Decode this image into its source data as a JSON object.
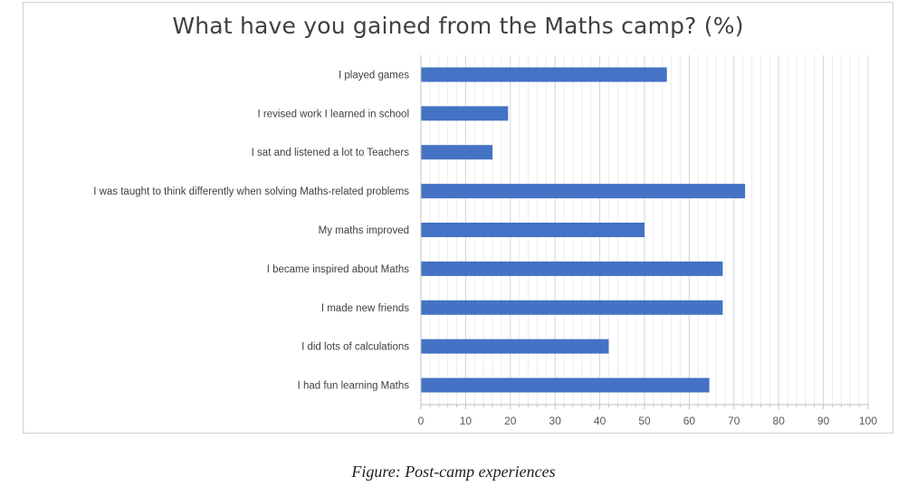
{
  "chart_data": {
    "type": "bar",
    "orientation": "horizontal",
    "title": "What have you gained from the Maths camp? (%)",
    "categories": [
      "I played games",
      "I revised work I learned in school",
      "I sat and listened a lot to Teachers",
      "I was taught to think differently when solving Maths-related problems",
      "My maths improved",
      "I became inspired about Maths",
      "I made new friends",
      "I did lots of calculations",
      "I had fun learning Maths"
    ],
    "values": [
      55,
      19.5,
      16,
      72.5,
      50,
      67.5,
      67.5,
      42,
      64.5
    ],
    "xlim": [
      0,
      100
    ],
    "xticks": [
      "0",
      "10",
      "20",
      "30",
      "40",
      "50",
      "60",
      "70",
      "80",
      "90",
      "100"
    ],
    "grid": true,
    "bar_color": "#4472c4"
  },
  "caption": "Figure: Post-camp experiences"
}
